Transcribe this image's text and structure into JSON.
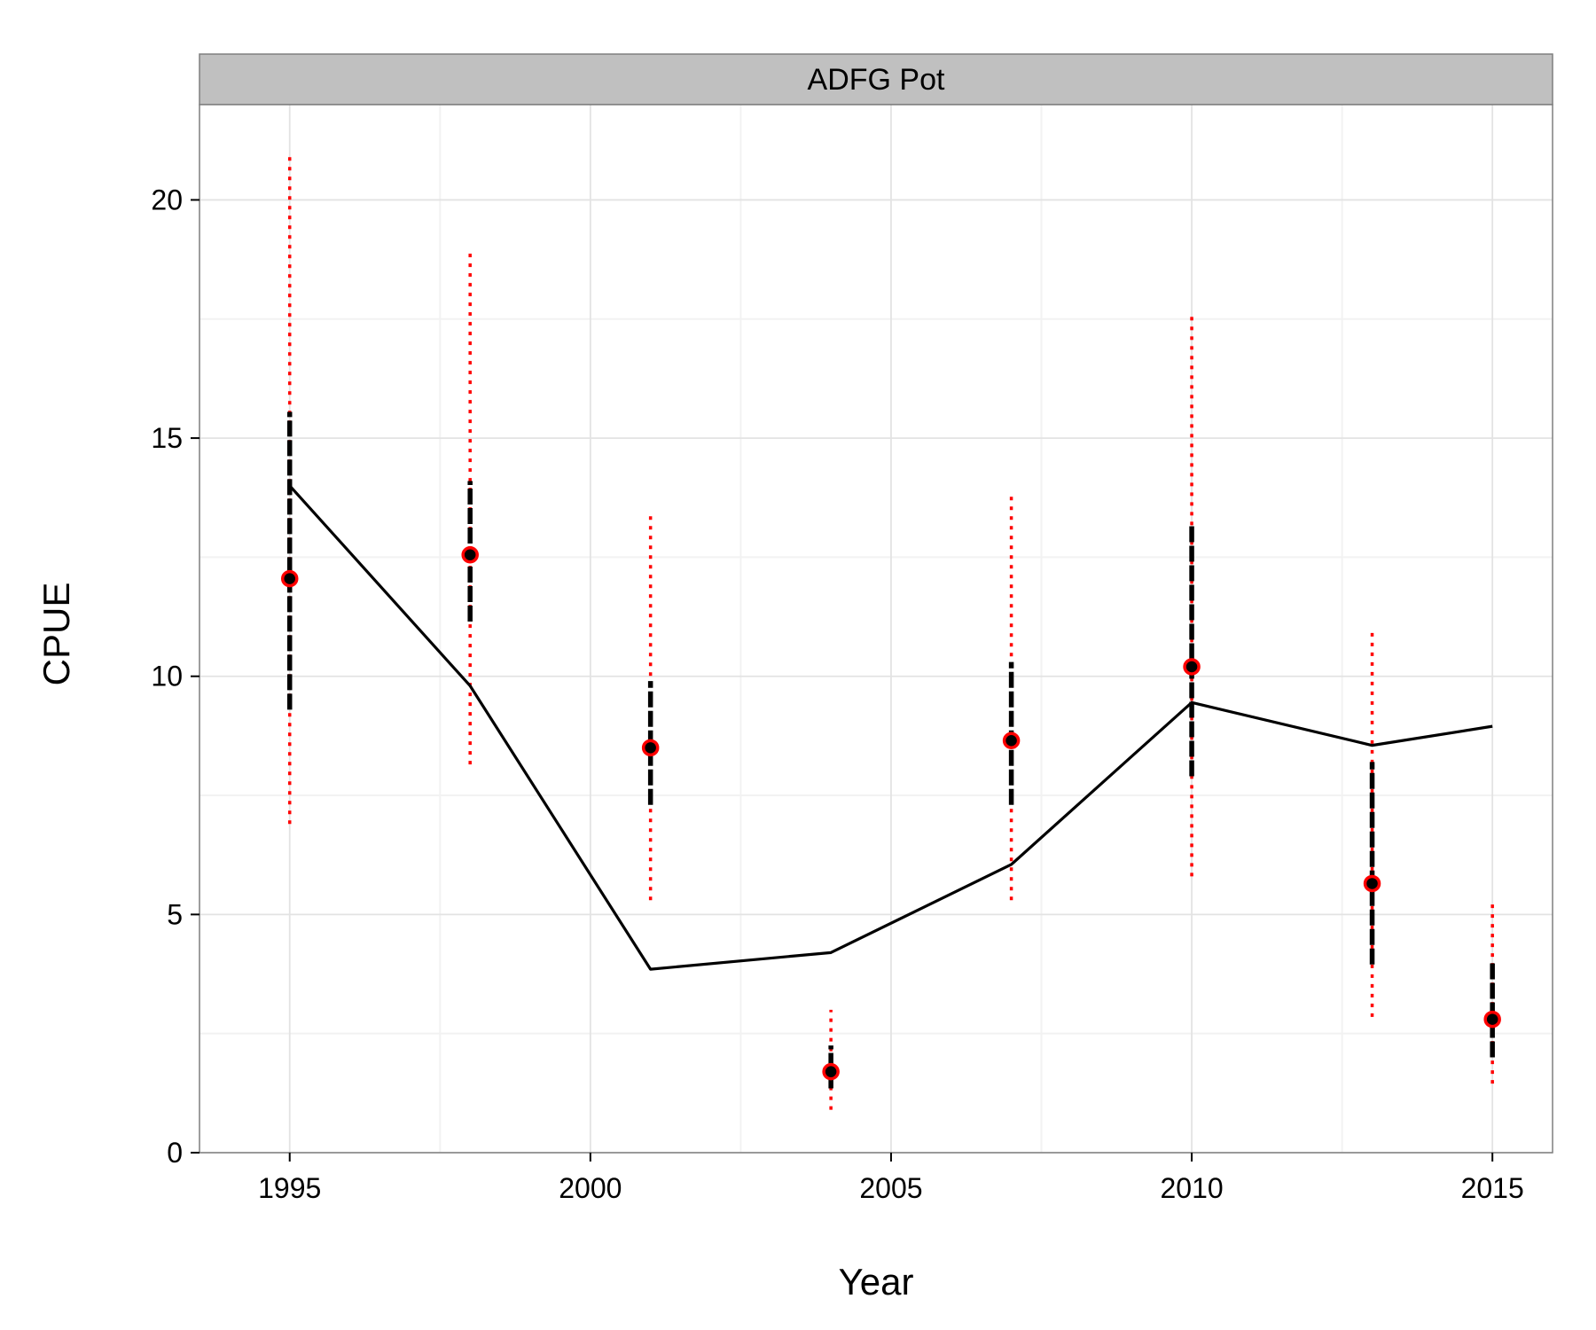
{
  "chart_data": {
    "type": "scatter",
    "facet_label": "ADFG Pot",
    "xlabel": "Year",
    "ylabel": "CPUE",
    "xlim": [
      1993.5,
      2016
    ],
    "ylim": [
      0,
      22
    ],
    "x_ticks": [
      1995,
      2000,
      2005,
      2010,
      2015
    ],
    "y_ticks": [
      0,
      5,
      10,
      15,
      20
    ],
    "grid": true,
    "observed": {
      "x": [
        1995,
        1998,
        2001,
        2004,
        2007,
        2010,
        2013,
        2015
      ],
      "y": [
        12.05,
        12.55,
        8.5,
        1.7,
        8.65,
        10.2,
        5.65,
        2.8
      ],
      "ci_inner_low": [
        9.3,
        11.15,
        7.3,
        1.35,
        7.3,
        7.9,
        3.95,
        2.0
      ],
      "ci_inner_high": [
        15.55,
        14.1,
        9.9,
        2.25,
        10.3,
        13.2,
        8.2,
        4.0
      ],
      "ci_outer_low": [
        6.9,
        8.15,
        5.3,
        0.9,
        5.3,
        5.8,
        2.85,
        1.45
      ],
      "ci_outer_high": [
        21.0,
        19.0,
        13.45,
        3.0,
        13.8,
        17.65,
        11.0,
        5.25
      ]
    },
    "predicted": {
      "x": [
        1995,
        1998,
        2001,
        2004,
        2007,
        2010,
        2013,
        2015
      ],
      "y": [
        14.0,
        9.8,
        3.85,
        4.2,
        6.05,
        9.45,
        8.55,
        8.95
      ]
    },
    "colors": {
      "panel_border": "#7f7f7f",
      "strip_fill": "#c0c0c0",
      "grid_major": "#e3e3e3",
      "grid_minor": "#f2f2f2",
      "outer_ci": "#ff0000",
      "inner_ci": "#000000",
      "point_fill": "#000000",
      "point_edge": "#ff0000",
      "pred_line": "#000000"
    }
  }
}
